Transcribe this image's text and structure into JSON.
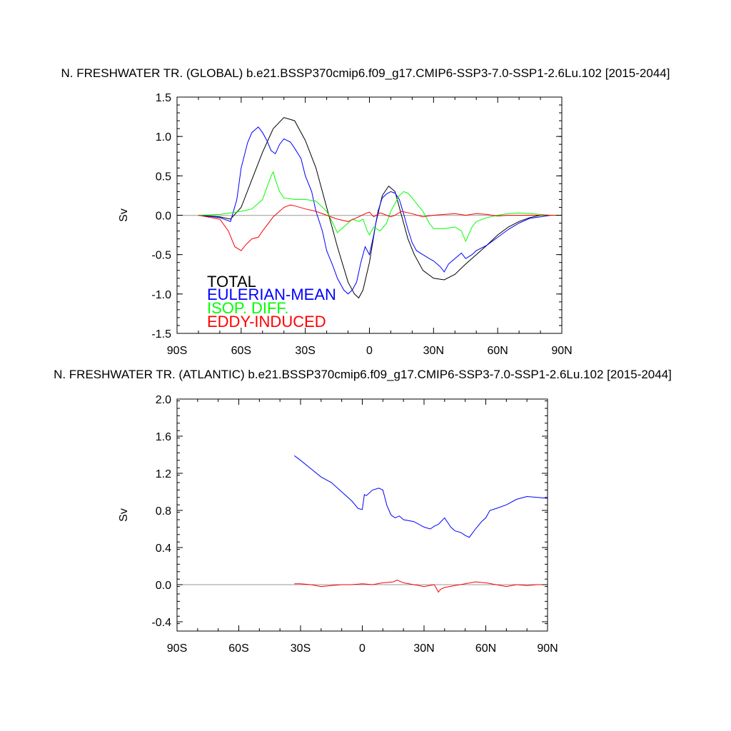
{
  "chart_data": [
    {
      "type": "line",
      "title": "N. FRESHWATER TR. (GLOBAL) b.e21.BSSP370cmip6.f09_g17.CMIP6-SSP3-7.0-SSP1-2.6Lu.102 [2015-2044]",
      "xlabel": "",
      "ylabel": "Sv",
      "xlim": [
        -90,
        90
      ],
      "ylim": [
        -1.5,
        1.5
      ],
      "xticks": [
        -90,
        -60,
        -30,
        0,
        30,
        60,
        90
      ],
      "xtick_labels": [
        "90S",
        "60S",
        "30S",
        "0",
        "30N",
        "60N",
        "90N"
      ],
      "yticks": [
        -1.5,
        -1.0,
        -0.5,
        0.0,
        0.5,
        1.0,
        1.5
      ],
      "ytick_labels": [
        "-1.5",
        "-1.0",
        "-0.5",
        "0.0",
        "0.5",
        "1.0",
        "1.5"
      ],
      "legend_position": "bottom-left",
      "series": [
        {
          "name": "TOTAL",
          "color": "#000000",
          "x": [
            -80,
            -70,
            -65,
            -60,
            -55,
            -50,
            -45,
            -40,
            -35,
            -30,
            -25,
            -20,
            -15,
            -10,
            -7,
            -5,
            -3,
            0,
            3,
            6,
            9,
            12,
            15,
            18,
            21,
            25,
            30,
            35,
            40,
            45,
            50,
            55,
            60,
            65,
            70,
            75,
            80,
            85,
            90
          ],
          "y": [
            0,
            -0.02,
            -0.05,
            0.1,
            0.45,
            0.8,
            1.1,
            1.24,
            1.2,
            0.95,
            0.6,
            0.1,
            -0.4,
            -0.85,
            -1.0,
            -1.05,
            -0.95,
            -0.6,
            -0.1,
            0.25,
            0.37,
            0.3,
            0.0,
            -0.3,
            -0.5,
            -0.7,
            -0.8,
            -0.82,
            -0.75,
            -0.62,
            -0.5,
            -0.38,
            -0.25,
            -0.15,
            -0.08,
            -0.03,
            0,
            0,
            0
          ]
        },
        {
          "name": "EULERIAN-MEAN",
          "color": "#0000ff",
          "x": [
            -80,
            -70,
            -65,
            -62,
            -60,
            -57,
            -55,
            -52,
            -50,
            -48,
            -46,
            -44,
            -42,
            -40,
            -37,
            -35,
            -32,
            -30,
            -27,
            -25,
            -22,
            -20,
            -17,
            -15,
            -12,
            -10,
            -8,
            -6,
            -4,
            -2,
            0,
            2,
            4,
            6,
            8,
            10,
            12,
            14,
            16,
            18,
            20,
            22,
            25,
            28,
            30,
            33,
            35,
            37,
            40,
            43,
            45,
            48,
            50,
            55,
            60,
            65,
            70,
            75,
            80,
            85,
            90
          ],
          "y": [
            0,
            -0.03,
            -0.08,
            0.2,
            0.6,
            0.92,
            1.05,
            1.12,
            1.05,
            0.95,
            0.82,
            0.78,
            0.9,
            0.97,
            0.93,
            0.85,
            0.72,
            0.5,
            0.3,
            0.05,
            -0.2,
            -0.45,
            -0.65,
            -0.8,
            -0.95,
            -1.0,
            -0.95,
            -0.85,
            -0.6,
            -0.4,
            -0.5,
            -0.25,
            0.05,
            0.22,
            0.27,
            0.3,
            0.28,
            0.2,
            0.02,
            -0.18,
            -0.35,
            -0.45,
            -0.5,
            -0.55,
            -0.58,
            -0.65,
            -0.72,
            -0.62,
            -0.55,
            -0.48,
            -0.55,
            -0.5,
            -0.45,
            -0.38,
            -0.28,
            -0.18,
            -0.1,
            -0.04,
            -0.02,
            0,
            0
          ]
        },
        {
          "name": "ISOP. DIFF.",
          "color": "#00ff00",
          "x": [
            -80,
            -70,
            -65,
            -60,
            -55,
            -50,
            -48,
            -46,
            -45,
            -44,
            -42,
            -40,
            -35,
            -30,
            -25,
            -20,
            -18,
            -15,
            -12,
            -10,
            -8,
            -5,
            -3,
            -1,
            0,
            2,
            5,
            8,
            10,
            12,
            14,
            16,
            18,
            20,
            22,
            25,
            28,
            30,
            35,
            40,
            43,
            45,
            48,
            50,
            55,
            60,
            65,
            70,
            75,
            80,
            85,
            90
          ],
          "y": [
            0,
            0.01,
            0.03,
            0.05,
            0.08,
            0.2,
            0.35,
            0.5,
            0.55,
            0.45,
            0.3,
            0.22,
            0.2,
            0.2,
            0.18,
            0.05,
            -0.05,
            -0.22,
            -0.15,
            -0.1,
            -0.05,
            -0.08,
            -0.05,
            -0.2,
            -0.25,
            -0.15,
            -0.2,
            -0.1,
            0.05,
            0.15,
            0.25,
            0.3,
            0.28,
            0.22,
            0.15,
            0.05,
            -0.1,
            -0.17,
            -0.17,
            -0.15,
            -0.2,
            -0.33,
            -0.15,
            -0.08,
            -0.03,
            0.0,
            0.02,
            0.03,
            0.02,
            0.01,
            0,
            0
          ]
        },
        {
          "name": "EDDY-INDUCED",
          "color": "#ff0000",
          "x": [
            -80,
            -70,
            -66,
            -63,
            -60,
            -58,
            -55,
            -52,
            -50,
            -45,
            -40,
            -37,
            -35,
            -30,
            -25,
            -20,
            -15,
            -10,
            -5,
            -2,
            0,
            2,
            5,
            8,
            10,
            12,
            15,
            20,
            25,
            30,
            35,
            40,
            45,
            50,
            55,
            60,
            65,
            70,
            75,
            80,
            85,
            90
          ],
          "y": [
            0,
            -0.05,
            -0.2,
            -0.4,
            -0.45,
            -0.38,
            -0.3,
            -0.28,
            -0.2,
            -0.02,
            0.1,
            0.13,
            0.12,
            0.08,
            0.05,
            0.0,
            -0.05,
            -0.08,
            -0.02,
            0.02,
            0.04,
            -0.02,
            0.03,
            0.0,
            -0.02,
            0.0,
            0.05,
            0.02,
            -0.02,
            0.0,
            0.01,
            0.02,
            0.0,
            0.02,
            0.01,
            -0.01,
            0.0,
            0.0,
            0.0,
            0.0,
            0,
            0
          ]
        }
      ],
      "legend": [
        {
          "label": "TOTAL",
          "color": "#000000"
        },
        {
          "label": "EULERIAN-MEAN",
          "color": "#0000ff"
        },
        {
          "label": "ISOP. DIFF.",
          "color": "#00ff00"
        },
        {
          "label": "EDDY-INDUCED",
          "color": "#ff0000"
        }
      ]
    },
    {
      "type": "line",
      "title": "N. FRESHWATER TR. (ATLANTIC) b.e21.BSSP370cmip6.f09_g17.CMIP6-SSP3-7.0-SSP1-2.6Lu.102 [2015-2044]",
      "xlabel": "",
      "ylabel": "Sv",
      "xlim": [
        -90,
        90
      ],
      "ylim": [
        -0.5,
        2.0
      ],
      "xticks": [
        -90,
        -60,
        -30,
        0,
        30,
        60,
        90
      ],
      "xtick_labels": [
        "90S",
        "60S",
        "30S",
        "0",
        "30N",
        "60N",
        "90N"
      ],
      "yticks": [
        -0.4,
        0.0,
        0.4,
        0.8,
        1.2,
        1.6,
        2.0
      ],
      "ytick_labels": [
        "-0.4",
        "0.0",
        "0.4",
        "0.8",
        "1.2",
        "1.6",
        "2.0"
      ],
      "series": [
        {
          "name": "EULERIAN-MEAN",
          "color": "#0000ff",
          "x": [
            -33,
            -30,
            -25,
            -20,
            -15,
            -10,
            -5,
            -2,
            0,
            1,
            2,
            5,
            8,
            10,
            12,
            14,
            16,
            18,
            20,
            25,
            30,
            33,
            35,
            37,
            40,
            43,
            45,
            48,
            50,
            52,
            55,
            58,
            60,
            62,
            65,
            70,
            75,
            80,
            85,
            90
          ],
          "y": [
            1.39,
            1.34,
            1.25,
            1.16,
            1.1,
            1.0,
            0.9,
            0.82,
            0.81,
            0.97,
            0.96,
            1.02,
            1.04,
            1.02,
            0.85,
            0.75,
            0.72,
            0.74,
            0.7,
            0.68,
            0.62,
            0.6,
            0.63,
            0.65,
            0.72,
            0.62,
            0.58,
            0.56,
            0.53,
            0.51,
            0.6,
            0.68,
            0.72,
            0.8,
            0.82,
            0.86,
            0.92,
            0.95,
            0.94,
            0.93
          ]
        },
        {
          "name": "EDDY-INDUCED",
          "color": "#ff0000",
          "x": [
            -33,
            -30,
            -25,
            -20,
            -15,
            -10,
            -5,
            0,
            5,
            10,
            15,
            17,
            20,
            25,
            30,
            35,
            37,
            38,
            40,
            45,
            50,
            55,
            60,
            65,
            70,
            75,
            80,
            85,
            90
          ],
          "y": [
            0.01,
            0.01,
            0.0,
            -0.02,
            -0.01,
            0.0,
            0.0,
            0.01,
            0.0,
            0.02,
            0.03,
            0.05,
            0.02,
            0.0,
            -0.02,
            0.0,
            -0.08,
            -0.05,
            -0.03,
            -0.01,
            0.01,
            0.03,
            0.02,
            0.0,
            -0.02,
            0.0,
            -0.01,
            0.0,
            0.0
          ]
        }
      ]
    }
  ]
}
